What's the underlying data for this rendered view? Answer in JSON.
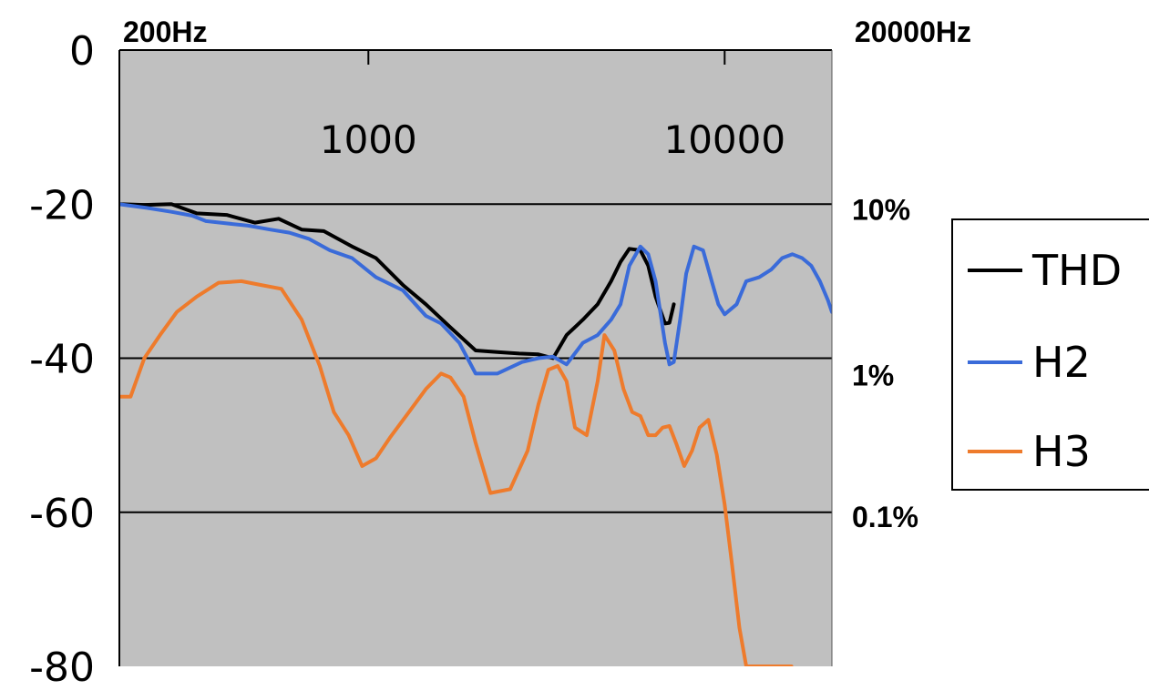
{
  "chart_data": {
    "type": "line",
    "x_scale": "log",
    "xlim": [
      200,
      20000
    ],
    "ylim": [
      -80,
      0
    ],
    "grid": "horizontal",
    "legend": "right",
    "x_edge_labels": [
      "200Hz",
      "20000Hz"
    ],
    "x_tick_labels": [
      {
        "value": 1000,
        "label": "1000"
      },
      {
        "value": 10000,
        "label": "10000"
      }
    ],
    "y_ticks": [
      0,
      -20,
      -40,
      -60,
      -80
    ],
    "y_tick_labels": [
      "0",
      "-20",
      "-40",
      "-60",
      "-80"
    ],
    "right_axis_labels": [
      {
        "y": -20,
        "label": "10%"
      },
      {
        "y": -40,
        "label": "1%"
      },
      {
        "y": -60,
        "label": "0.1%"
      }
    ],
    "plot_background": "#c0c0c0",
    "series": [
      {
        "name": "THD",
        "color": "#000000",
        "x": [
          200,
          235,
          280,
          330,
          400,
          480,
          560,
          650,
          750,
          900,
          1050,
          1250,
          1450,
          1700,
          2000,
          2300,
          2650,
          3000,
          3300,
          3600,
          4000,
          4400,
          4800,
          5100,
          5400,
          5800,
          6100,
          6400,
          6800,
          7000,
          7200
        ],
        "y": [
          -20,
          -20.1,
          -20,
          -21.2,
          -21.4,
          -22.4,
          -21.9,
          -23.3,
          -23.5,
          -25.5,
          -27,
          -30.5,
          -33,
          -36,
          -39,
          -39.2,
          -39.4,
          -39.5,
          -40,
          -37,
          -35,
          -33,
          -30,
          -27.5,
          -25.8,
          -26,
          -28,
          -32,
          -35.5,
          -35.4,
          -33
        ]
      },
      {
        "name": "H2",
        "color": "#3a6bd9",
        "x": [
          200,
          240,
          280,
          320,
          350,
          400,
          460,
          530,
          600,
          680,
          780,
          900,
          1050,
          1250,
          1450,
          1600,
          1800,
          2000,
          2300,
          2700,
          3000,
          3300,
          3600,
          4000,
          4400,
          4800,
          5100,
          5400,
          5800,
          6100,
          6400,
          6800,
          7000,
          7200,
          7500,
          7800,
          8200,
          8700,
          9200,
          9600,
          10000,
          10800,
          11500,
          12500,
          13500,
          14500,
          15500,
          16500,
          17500,
          18500,
          19500,
          20000
        ],
        "y": [
          -20,
          -20.5,
          -21,
          -21.5,
          -22.2,
          -22.5,
          -22.8,
          -23.3,
          -23.7,
          -24.5,
          -26,
          -27,
          -29.5,
          -31.2,
          -34.5,
          -35.5,
          -38,
          -42,
          -42,
          -40.5,
          -40,
          -39.8,
          -40.8,
          -38,
          -37,
          -35,
          -33,
          -28,
          -25.5,
          -26.5,
          -30,
          -38,
          -40.8,
          -40.5,
          -35,
          -29,
          -25.5,
          -26,
          -30,
          -33,
          -34.3,
          -33,
          -30,
          -29.5,
          -28.5,
          -27,
          -26.5,
          -27,
          -28,
          -30,
          -32.5,
          -34
        ]
      },
      {
        "name": "H3",
        "color": "#ee7b2c",
        "x": [
          200,
          215,
          235,
          260,
          290,
          330,
          380,
          440,
          500,
          570,
          650,
          730,
          800,
          880,
          960,
          1050,
          1150,
          1300,
          1450,
          1600,
          1700,
          1850,
          2000,
          2200,
          2500,
          2800,
          3000,
          3200,
          3400,
          3600,
          3800,
          4100,
          4400,
          4600,
          4900,
          5200,
          5500,
          5800,
          6100,
          6400,
          6700,
          7000,
          7300,
          7700,
          8100,
          8500,
          9000,
          9500,
          10000,
          10500,
          11000,
          11500,
          12000,
          12300,
          12700,
          13200,
          13700,
          14200,
          14800,
          15400
        ],
        "y": [
          -45,
          -45,
          -40,
          -37,
          -34,
          -32,
          -30.2,
          -30,
          -30.5,
          -31,
          -35,
          -41,
          -47,
          -50,
          -54,
          -53,
          -50.3,
          -47,
          -44,
          -42,
          -42.5,
          -45,
          -51,
          -57.5,
          -57,
          -52,
          -46,
          -41.5,
          -41,
          -43,
          -49,
          -50,
          -43,
          -37,
          -39,
          -44,
          -47,
          -47.5,
          -50,
          -50,
          -49,
          -48.8,
          -51,
          -54,
          -52,
          -49,
          -48,
          -52.5,
          -59,
          -67,
          -75,
          -80,
          -80,
          -80,
          -80,
          -80,
          -80,
          -80,
          -80,
          -80
        ]
      }
    ]
  }
}
